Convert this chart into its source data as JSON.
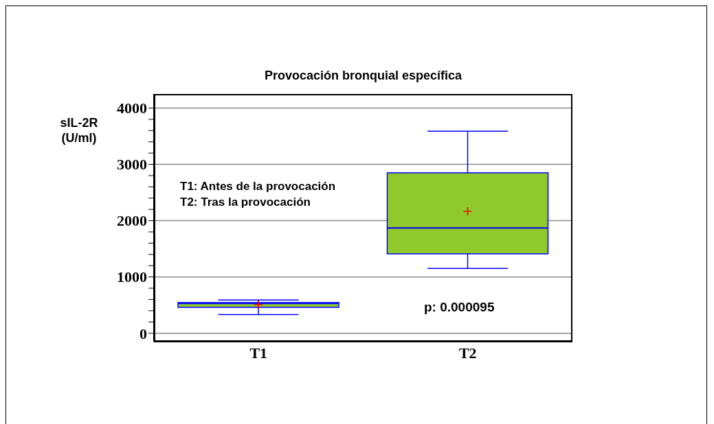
{
  "chart_data": {
    "type": "box",
    "title": "Provocación bronquial específica",
    "ylabel": "sIL-2R (U/ml)",
    "categories": [
      "T1",
      "T2"
    ],
    "boxes": [
      {
        "low": 330,
        "q1": 460,
        "median": 530,
        "q3": 545,
        "high": 590,
        "mean": 505
      },
      {
        "low": 1150,
        "q1": 1410,
        "median": 1870,
        "q3": 2850,
        "high": 3590,
        "mean": 2165
      }
    ],
    "color": "#8fc92b",
    "ylim": [
      -150,
      4250
    ],
    "yticks": [
      0,
      {
        "value": 200,
        "label": null
      },
      {
        "value": 400,
        "label": null
      },
      {
        "value": 600,
        "label": null
      },
      {
        "value": 800,
        "label": null
      },
      1000,
      {
        "value": 1200,
        "label": null
      },
      {
        "value": 1400,
        "label": null
      },
      {
        "value": 1600,
        "label": null
      },
      {
        "value": 1800,
        "label": null
      },
      2000,
      {
        "value": 2200,
        "label": null
      },
      {
        "value": 2400,
        "label": null
      },
      {
        "value": 2600,
        "label": null
      },
      {
        "value": 2800,
        "label": null
      },
      3000,
      {
        "value": 3200,
        "label": null
      },
      {
        "value": 3400,
        "label": null
      },
      {
        "value": 3600,
        "label": null
      },
      {
        "value": 3800,
        "label": null
      },
      4000
    ],
    "grid": "y",
    "annotations": [
      "T1: Antes de la provocación",
      "T2: Tras la provocación",
      "p: 0.000095"
    ]
  }
}
